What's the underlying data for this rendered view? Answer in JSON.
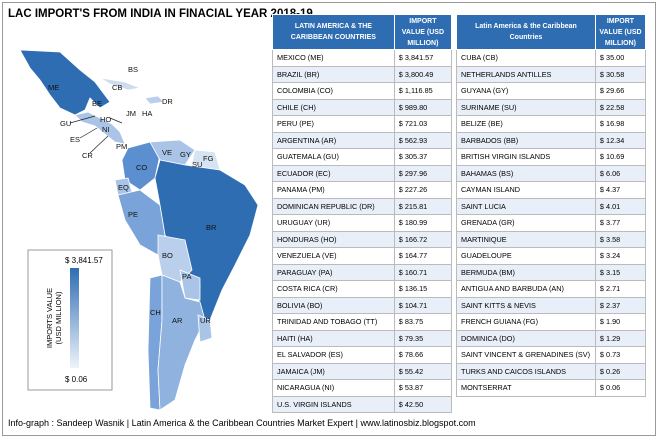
{
  "title": "LAC IMPORT'S FROM INDIA IN FINACIAL YEAR 2018-19",
  "legend": {
    "max": "$ 3,841.57",
    "min": "$ 0.06",
    "label_line1": "IMPORTS VALUE",
    "label_line2": "(USD MILLION)"
  },
  "map": {
    "labels": [
      "ME",
      "BS",
      "CB",
      "DR",
      "BE",
      "JM",
      "HA",
      "GU",
      "HO",
      "NI",
      "ES",
      "CR",
      "PM",
      "VE",
      "GY",
      "SU",
      "FG",
      "CO",
      "EQ",
      "PE",
      "BR",
      "BO",
      "PA",
      "CH",
      "AR",
      "UR"
    ]
  },
  "table_left": {
    "headers": [
      "LATIN AMERICA & THE CARIBBEAN COUNTRIES",
      "IMPORT VALUE (USD MILLION)"
    ],
    "rows": [
      [
        "MEXICO (ME)",
        "$ 3,841.57"
      ],
      [
        "BRAZIL (BR)",
        "$ 3,800.49"
      ],
      [
        "COLOMBIA (CO)",
        "$ 1,116.85"
      ],
      [
        "CHILE (CH)",
        "$ 989.80"
      ],
      [
        "PERU (PE)",
        "$ 721.03"
      ],
      [
        "ARGENTINA (AR)",
        "$ 562.93"
      ],
      [
        "GUATEMALA (GU)",
        "$ 305.37"
      ],
      [
        "ECUADOR (EC)",
        "$ 297.96"
      ],
      [
        "PANAMA (PM)",
        "$ 227.26"
      ],
      [
        "DOMINICAN REPUBLIC (DR)",
        "$ 215.81"
      ],
      [
        "URUGUAY (UR)",
        "$ 180.99"
      ],
      [
        "HONDURAS (HO)",
        "$ 166.72"
      ],
      [
        "VENEZUELA (VE)",
        "$ 164.77"
      ],
      [
        "PARAGUAY (PA)",
        "$ 160.71"
      ],
      [
        "COSTA RICA (CR)",
        "$ 136.15"
      ],
      [
        "BOLIVIA (BO)",
        "$ 104.71"
      ],
      [
        "TRINIDAD AND TOBAGO (TT)",
        "$ 83.75"
      ],
      [
        "HAITI (HA)",
        "$ 79.35"
      ],
      [
        "EL SALVADOR (ES)",
        "$ 78.66"
      ],
      [
        "JAMAICA (JM)",
        "$ 55.42"
      ],
      [
        "NICARAGUA (NI)",
        "$ 53.87"
      ],
      [
        "U.S. VIRGIN ISLANDS",
        "$ 42.50"
      ]
    ]
  },
  "table_right": {
    "headers": [
      "Latin America & the Caribbean Countries",
      "IMPORT VALUE (USD MILLION)"
    ],
    "rows": [
      [
        "CUBA (CB)",
        "$ 35.00"
      ],
      [
        "NETHERLANDS ANTILLES",
        "$ 30.58"
      ],
      [
        "GUYANA (GY)",
        "$ 29.66"
      ],
      [
        "SURINAME (SU)",
        "$ 22.58"
      ],
      [
        "BELIZE (BE)",
        "$ 16.98"
      ],
      [
        "BARBADOS (BB)",
        "$ 12.34"
      ],
      [
        "BRITISH VIRGIN ISLANDS",
        "$ 10.69"
      ],
      [
        "BAHAMAS (BS)",
        "$ 6.06"
      ],
      [
        "CAYMAN ISLAND",
        "$ 4.37"
      ],
      [
        "SAINT LUCIA",
        "$ 4.01"
      ],
      [
        "GRENADA (GR)",
        "$ 3.77"
      ],
      [
        "MARTINIQUE",
        "$ 3.58"
      ],
      [
        "GUADELOUPE",
        "$ 3.24"
      ],
      [
        "BERMUDA (BM)",
        "$ 3.15"
      ],
      [
        "ANTIGUA AND BARBUDA (AN)",
        "$ 2.71"
      ],
      [
        "SAINT KITTS & NEVIS",
        "$ 2.37"
      ],
      [
        "FRENCH GUIANA (FG)",
        "$ 1.90"
      ],
      [
        "DOMINICA (DO)",
        "$ 1.29"
      ],
      [
        "SAINT VINCENT & GRENADINES (SV)",
        "$ 0.73"
      ],
      [
        "TURKS AND CAICOS ISLANDS",
        "$ 0.26"
      ],
      [
        "MONTSERRAT",
        "$ 0.06"
      ]
    ]
  },
  "footer": "Info-graph : Sandeep Wasnik | Latin America & the Caribbean Countries Market Expert | www.latinosbiz.blogspot.com"
}
